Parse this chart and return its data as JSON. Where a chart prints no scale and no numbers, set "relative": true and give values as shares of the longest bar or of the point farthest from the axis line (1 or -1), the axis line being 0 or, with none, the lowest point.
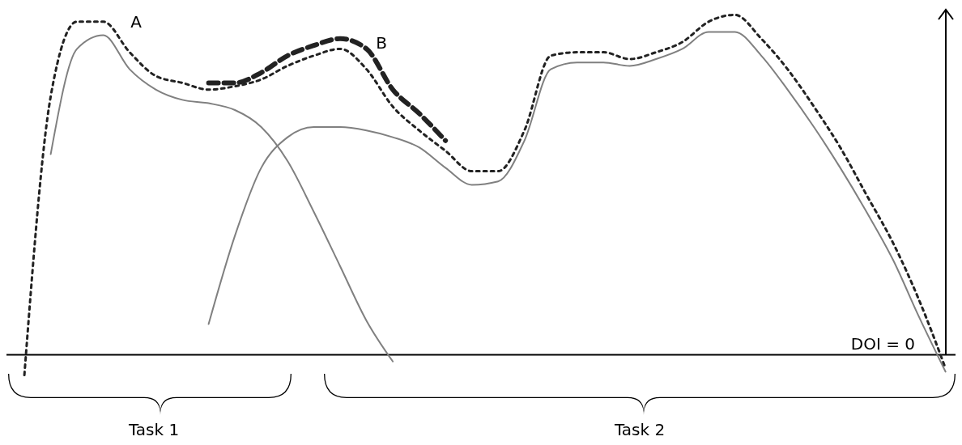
{
  "chart_data": {
    "type": "line",
    "relative": true,
    "categories": [
      null,
      null,
      null,
      null,
      null,
      null,
      null,
      null,
      null,
      null,
      null,
      null,
      null,
      null,
      null,
      null,
      null,
      null,
      null,
      null,
      null,
      null,
      null,
      null,
      null,
      null,
      null,
      null,
      null,
      null,
      null,
      null,
      null,
      null,
      null,
      null
    ],
    "series": [
      {
        "color": "#808080",
        "line_style": "solid",
        "values": [
          null,
          0.59,
          0.9,
          0.94,
          0.84,
          0.78,
          0.75,
          0.74,
          0.72,
          0.67,
          0.57,
          0.42,
          0.26,
          0.1,
          -0.02,
          null,
          null,
          null,
          null,
          null,
          null,
          null,
          null,
          null,
          null,
          null,
          null,
          null,
          null,
          null,
          null,
          null,
          null,
          null,
          null,
          null
        ]
      },
      {
        "color": "#808080",
        "line_style": "solid",
        "values": [
          null,
          null,
          null,
          null,
          null,
          null,
          null,
          0.09,
          0.35,
          0.55,
          0.64,
          0.67,
          0.67,
          0.66,
          0.64,
          0.61,
          0.55,
          0.5,
          0.51,
          0.63,
          0.84,
          0.86,
          0.86,
          0.85,
          0.87,
          0.9,
          0.95,
          0.95,
          0.88,
          0.78,
          0.67,
          0.55,
          0.42,
          0.28,
          0.11,
          -0.05
        ]
      },
      {
        "color": "#222222",
        "line_style": "dotted",
        "values": [
          -0.06,
          0.76,
          0.98,
          0.98,
          0.89,
          0.82,
          0.8,
          0.78,
          0.79,
          0.81,
          0.85,
          0.88,
          0.9,
          0.84,
          0.73,
          0.66,
          0.6,
          0.54,
          0.54,
          0.66,
          0.88,
          0.89,
          0.89,
          0.87,
          0.89,
          0.92,
          0.98,
          1,
          0.93,
          0.84,
          0.73,
          0.61,
          0.47,
          0.33,
          0.16,
          -0.04
        ]
      },
      {
        "color": "#222222",
        "line_style": "dashed",
        "values": [
          null,
          null,
          null,
          null,
          null,
          null,
          null,
          0.8,
          0.8,
          0.83,
          0.88,
          0.91,
          0.93,
          0.9,
          0.78,
          0.71,
          0.63,
          null,
          null,
          null,
          null,
          null,
          null,
          null,
          null,
          null,
          null,
          null,
          null,
          null,
          null,
          null,
          null,
          null,
          null,
          null
        ]
      }
    ],
    "ref_lines": [
      {
        "axis": "y",
        "value": 0,
        "label": "DOI = 0",
        "color": "#000000"
      }
    ],
    "annotations": [
      "A",
      "B",
      "Task 1",
      "Task 2"
    ]
  }
}
